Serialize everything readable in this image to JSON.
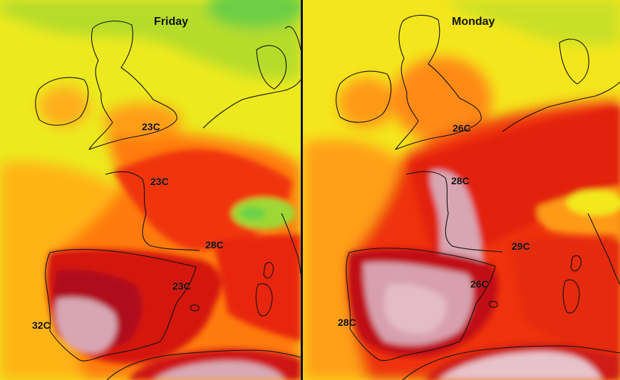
{
  "panels": [
    {
      "day": "Friday",
      "labels": [
        "23C",
        "23C",
        "28C",
        "23C",
        "32C"
      ]
    },
    {
      "day": "Monday",
      "labels": [
        "26C",
        "28C",
        "29C",
        "26C",
        "28C"
      ]
    }
  ],
  "colors": {
    "cool_green": "#7fd43a",
    "mild_yellow": "#f2e81a",
    "warm_orange": "#ff9a10",
    "hot_red": "#e8200c",
    "very_hot_maroon": "#b80a14",
    "extreme_pink": "#d9a8b4",
    "coastline": "#111111"
  }
}
